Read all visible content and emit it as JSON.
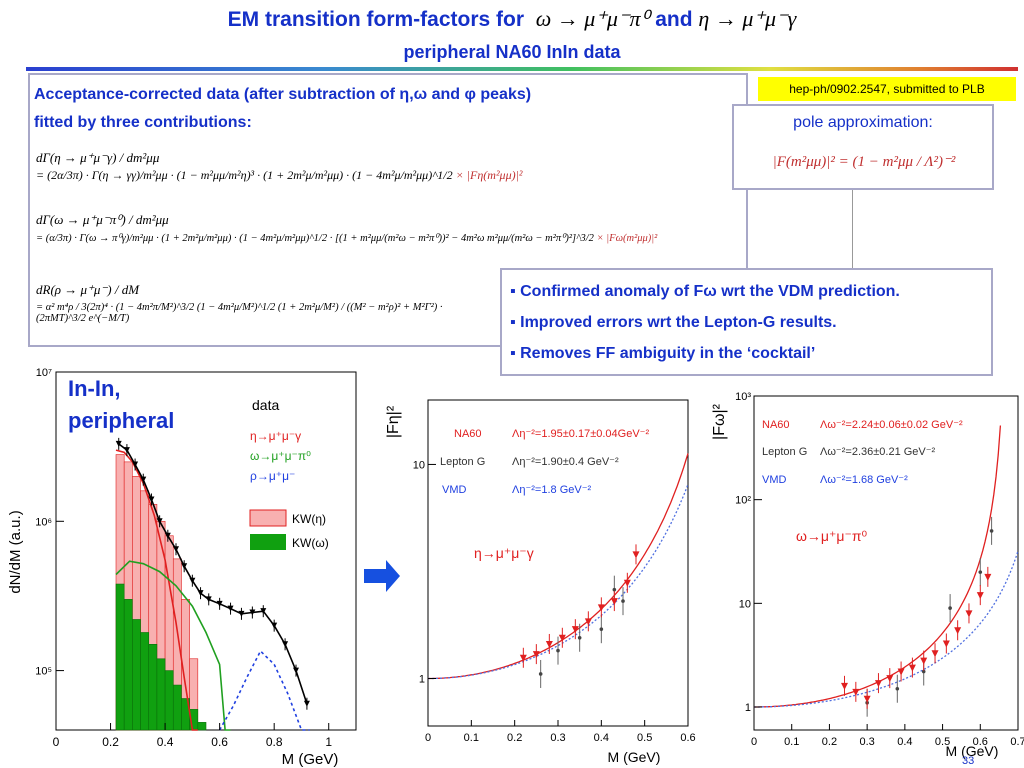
{
  "slide": {
    "title_prefix": "EM transition form-factors for",
    "title_formula1": "ω → μ⁺μ⁻π⁰",
    "title_and": "and",
    "title_formula2": "η → μ⁺μ⁻γ",
    "subtitle": "peripheral NA60 InIn data",
    "reference": "hep-ph/0902.2547, submitted to PLB",
    "page_number": "33"
  },
  "left_box": {
    "heading_line1": "Acceptance-corrected data (after subtraction of η,ω and φ peaks)",
    "heading_line2": "fitted by three contributions:",
    "eq1_lhs": "dΓ(η → μ⁺μ⁻γ) / dm²μμ",
    "eq1_rhs": "= (2α/3π) · Γ(η → γγ)/m²μμ · (1 − m²μμ/m²η)³ · (1 + 2m²μ/m²μμ) · (1 − 4m²μ/m²μμ)^1/2",
    "eq1_ff": "× |Fη(m²μμ)|²",
    "eq2_lhs": "dΓ(ω → μ⁺μ⁻π⁰) / dm²μμ",
    "eq2_rhs": "= (α/3π) · Γ(ω → π⁰γ)/m²μμ · (1 + 2m²μ/m²μμ) · (1 − 4m²μ/m²μμ)^1/2 · [(1 + m²μμ/(m²ω − m²π⁰))² − 4m²ω m²μμ/(m²ω − m²π⁰)²]^3/2",
    "eq2_ff": "× |Fω(m²μμ)|²",
    "eq3_lhs": "dR(ρ → μ⁺μ⁻) / dM",
    "eq3_rhs": "= α² m⁴ρ / 3(2π)⁴ · (1 − 4m²π/M²)^3/2 (1 − 4m²μ/M²)^1/2 (1 + 2m²μ/M²) / ((M² − m²ρ)² + M²Γ²) · (2πMT)^3/2 e^(−M/T)"
  },
  "pole_box": {
    "heading": "pole approximation:",
    "formula": "|F(m²μμ)|² = (1 − m²μμ / Λ²)⁻²"
  },
  "bullets": [
    "▪ Confirmed anomaly of Fω wrt the VDM prediction.",
    "▪ Improved errors wrt the Lepton-G results.",
    "▪ Removes FF ambiguity in the ‘cocktail’"
  ],
  "chart_data": [
    {
      "type": "line",
      "panel": "mass spectrum",
      "annotation": "In-In, peripheral",
      "xlabel": "M (GeV)",
      "ylabel": "dN/dM (a.u.)",
      "xlim": [
        0,
        1.1
      ],
      "ylim_log": [
        40000,
        10000000
      ],
      "y_scale": "log",
      "x_ticks": [
        "0",
        "0.2",
        "0.4",
        "0.6",
        "0.8",
        "1"
      ],
      "y_ticks": [
        "10⁵",
        "10⁶",
        "10⁷"
      ],
      "legend": {
        "data": "data",
        "eta": "η→μ⁺μ⁻γ",
        "omega": "ω→μ⁺μ⁻π⁰",
        "rho": "ρ→μ⁺μ⁻",
        "kw_eta": "KW(η)",
        "kw_omega": "KW(ω)"
      },
      "colors": {
        "eta": "#e02020",
        "omega": "#20a020",
        "rho": "#2040e0",
        "total": "#000000"
      },
      "series": [
        {
          "name": "data",
          "x": [
            0.23,
            0.26,
            0.29,
            0.32,
            0.35,
            0.38,
            0.41,
            0.44,
            0.47,
            0.5,
            0.53,
            0.56,
            0.6,
            0.64,
            0.68,
            0.72,
            0.76,
            0.8,
            0.84,
            0.88,
            0.92
          ],
          "y": [
            3300000,
            3000000,
            2400000,
            1900000,
            1400000,
            1000000,
            800000,
            650000,
            500000,
            400000,
            330000,
            300000,
            280000,
            260000,
            240000,
            245000,
            250000,
            200000,
            150000,
            100000,
            60000
          ]
        },
        {
          "name": "η→μ⁺μ⁻γ",
          "x": [
            0.22,
            0.25,
            0.28,
            0.32,
            0.36,
            0.4,
            0.44,
            0.47,
            0.5,
            0.52
          ],
          "y": [
            3000000,
            2900000,
            2500000,
            1800000,
            1100000,
            550000,
            210000,
            90000,
            40000,
            20000
          ]
        },
        {
          "name": "ω→μ⁺μ⁻π⁰",
          "x": [
            0.22,
            0.27,
            0.32,
            0.38,
            0.44,
            0.5,
            0.55,
            0.6,
            0.62,
            0.64
          ],
          "y": [
            440000,
            540000,
            520000,
            460000,
            370000,
            270000,
            180000,
            110000,
            40000,
            10000
          ]
        },
        {
          "name": "ρ→μ⁺μ⁻",
          "x": [
            0.6,
            0.65,
            0.7,
            0.75,
            0.8,
            0.85,
            0.9,
            0.93
          ],
          "y": [
            40000,
            58000,
            90000,
            135000,
            110000,
            70000,
            40000,
            25000
          ]
        },
        {
          "name": "KW(η)",
          "x": [
            0.22,
            0.25,
            0.28,
            0.31,
            0.34,
            0.37,
            0.4,
            0.43,
            0.46,
            0.49,
            0.52
          ],
          "y": [
            2800000,
            2500000,
            2000000,
            1600000,
            1300000,
            1000000,
            800000,
            560000,
            300000,
            120000,
            40000
          ]
        },
        {
          "name": "KW(ω)",
          "x": [
            0.22,
            0.25,
            0.28,
            0.31,
            0.34,
            0.37,
            0.4,
            0.43,
            0.46,
            0.49,
            0.52,
            0.55,
            0.58,
            0.61,
            0.64
          ],
          "y": [
            380000,
            300000,
            220000,
            180000,
            150000,
            120000,
            100000,
            80000,
            65000,
            55000,
            45000,
            38000,
            32000,
            28000,
            10000
          ]
        }
      ]
    },
    {
      "type": "scatter",
      "panel": "eta form factor",
      "xlabel": "M (GeV)",
      "ylabel": "|Fη|²",
      "xlim": [
        0,
        0.6
      ],
      "y_scale": "log",
      "ylim_log": [
        0.6,
        20
      ],
      "x_ticks": [
        "0",
        "0.1",
        "0.2",
        "0.3",
        "0.4",
        "0.5",
        "0.6"
      ],
      "y_ticks": [
        "1",
        "10"
      ],
      "reaction_label": "η→μ⁺μ⁻γ",
      "legend": [
        {
          "name": "NA60",
          "text": "Λη⁻²=1.95±0.17±0.04GeV⁻²",
          "color": "#e02020"
        },
        {
          "name": "Lepton G",
          "text": "Λη⁻²=1.90±0.4 GeV⁻²",
          "color": "#333333"
        },
        {
          "name": "VMD",
          "text": "Λη⁻²=1.8 GeV⁻²",
          "color": "#2040e0"
        }
      ],
      "series": [
        {
          "name": "NA60",
          "x": [
            0.22,
            0.25,
            0.28,
            0.31,
            0.34,
            0.37,
            0.4,
            0.43,
            0.46,
            0.48
          ],
          "y": [
            1.25,
            1.3,
            1.45,
            1.55,
            1.7,
            1.85,
            2.15,
            2.3,
            2.8,
            3.8
          ]
        },
        {
          "name": "Lepton G",
          "x": [
            0.26,
            0.3,
            0.35,
            0.4,
            0.43,
            0.45
          ],
          "y": [
            1.05,
            1.35,
            1.55,
            1.7,
            2.6,
            2.3
          ]
        }
      ]
    },
    {
      "type": "scatter",
      "panel": "omega form factor",
      "xlabel": "M (GeV)",
      "ylabel": "|Fω|²",
      "xlim": [
        0,
        0.7
      ],
      "y_scale": "log",
      "ylim_log": [
        0.6,
        1000
      ],
      "x_ticks": [
        "0",
        "0.1",
        "0.2",
        "0.3",
        "0.4",
        "0.5",
        "0.6",
        "0.7"
      ],
      "y_ticks": [
        "1",
        "10",
        "10²",
        "10³"
      ],
      "reaction_label": "ω→μ⁺μ⁻π⁰",
      "legend": [
        {
          "name": "NA60",
          "text": "Λω⁻²=2.24±0.06±0.02 GeV⁻²",
          "color": "#e02020"
        },
        {
          "name": "Lepton G",
          "text": "Λω⁻²=2.36±0.21 GeV⁻²",
          "color": "#333333"
        },
        {
          "name": "VMD",
          "text": "Λω⁻²=1.68 GeV⁻²",
          "color": "#2040e0"
        }
      ],
      "series": [
        {
          "name": "NA60",
          "x": [
            0.24,
            0.27,
            0.3,
            0.33,
            0.36,
            0.39,
            0.42,
            0.45,
            0.48,
            0.51,
            0.54,
            0.57,
            0.6,
            0.62
          ],
          "y": [
            1.6,
            1.4,
            1.2,
            1.7,
            1.9,
            2.2,
            2.4,
            2.8,
            3.3,
            4.1,
            5.5,
            8,
            12,
            18
          ]
        },
        {
          "name": "Lepton G",
          "x": [
            0.3,
            0.38,
            0.45,
            0.52,
            0.6,
            0.63
          ],
          "y": [
            1.1,
            1.5,
            2.2,
            9,
            20,
            50
          ]
        }
      ]
    }
  ]
}
